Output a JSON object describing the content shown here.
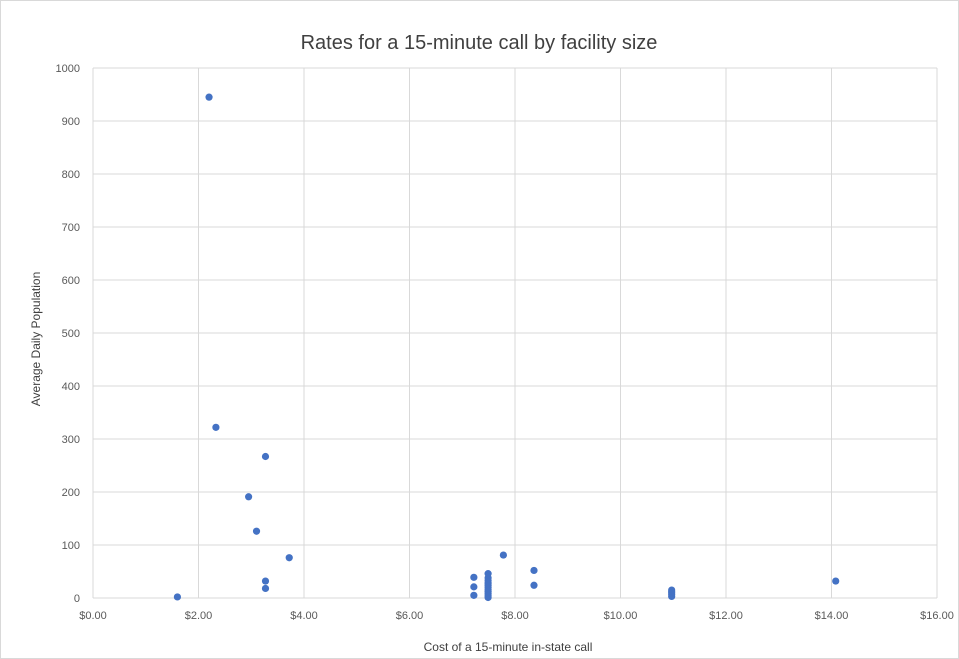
{
  "chart_data": {
    "type": "scatter",
    "title": "Rates for a 15-minute call by facility size",
    "xlabel": "Cost of a 15-minute in-state call",
    "ylabel": "Average Daily Population",
    "xlim": [
      0,
      16
    ],
    "ylim": [
      0,
      1000
    ],
    "x_ticks": [
      0,
      2,
      4,
      6,
      8,
      10,
      12,
      14,
      16
    ],
    "x_tick_labels": [
      "$0.00",
      "$2.00",
      "$4.00",
      "$6.00",
      "$8.00",
      "$10.00",
      "$12.00",
      "$14.00",
      "$16.00"
    ],
    "y_ticks": [
      0,
      100,
      200,
      300,
      400,
      500,
      600,
      700,
      800,
      900,
      1000
    ],
    "y_tick_labels": [
      "0",
      "100",
      "200",
      "300",
      "400",
      "500",
      "600",
      "700",
      "800",
      "900",
      "1000"
    ],
    "grid": true,
    "marker_color": "#4472c4",
    "points": [
      {
        "x": 1.6,
        "y": 2
      },
      {
        "x": 2.2,
        "y": 945
      },
      {
        "x": 2.33,
        "y": 322
      },
      {
        "x": 2.95,
        "y": 191
      },
      {
        "x": 3.1,
        "y": 126
      },
      {
        "x": 3.27,
        "y": 267
      },
      {
        "x": 3.27,
        "y": 32
      },
      {
        "x": 3.27,
        "y": 18
      },
      {
        "x": 3.72,
        "y": 76
      },
      {
        "x": 7.22,
        "y": 39
      },
      {
        "x": 7.22,
        "y": 21
      },
      {
        "x": 7.22,
        "y": 5
      },
      {
        "x": 7.49,
        "y": 46
      },
      {
        "x": 7.49,
        "y": 38
      },
      {
        "x": 7.49,
        "y": 33
      },
      {
        "x": 7.49,
        "y": 28
      },
      {
        "x": 7.49,
        "y": 24
      },
      {
        "x": 7.49,
        "y": 20
      },
      {
        "x": 7.49,
        "y": 16
      },
      {
        "x": 7.49,
        "y": 12
      },
      {
        "x": 7.49,
        "y": 8
      },
      {
        "x": 7.49,
        "y": 4
      },
      {
        "x": 7.49,
        "y": 1
      },
      {
        "x": 7.78,
        "y": 81
      },
      {
        "x": 8.36,
        "y": 52
      },
      {
        "x": 8.36,
        "y": 24
      },
      {
        "x": 10.97,
        "y": 15
      },
      {
        "x": 10.97,
        "y": 11
      },
      {
        "x": 10.97,
        "y": 7
      },
      {
        "x": 10.97,
        "y": 3
      },
      {
        "x": 14.08,
        "y": 32
      }
    ]
  }
}
